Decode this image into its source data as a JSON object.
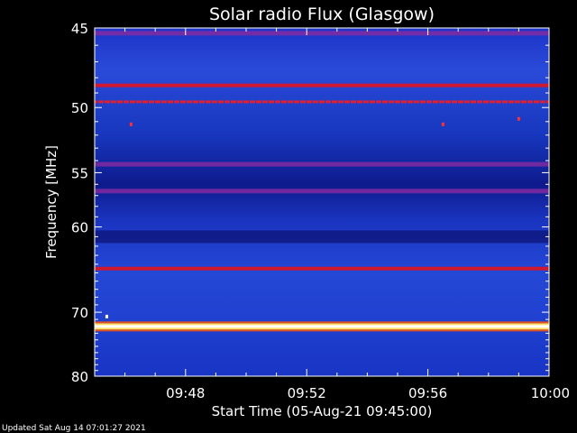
{
  "chart_data": {
    "type": "heatmap",
    "title": "Solar radio Flux (Glasgow)",
    "ylabel": "Frequency [MHz]",
    "xlabel": "Start Time (05-Aug-21 09:45:00)",
    "y_scale": "reciprocal",
    "ylim": [
      45,
      80
    ],
    "y_major_ticks": [
      45,
      50,
      55,
      60,
      70,
      80
    ],
    "y_tick_labels": [
      "45",
      "50",
      "55",
      "60",
      "70",
      "80"
    ],
    "xlim": [
      "09:45",
      "10:00"
    ],
    "x_tick_labels": [
      "09:48",
      "09:52",
      "09:56",
      "10:00"
    ],
    "x_ticks_minutes": [
      48,
      52,
      56,
      60
    ],
    "colormap": [
      "#0000a0",
      "#1e3cd2",
      "#7a1e9a",
      "#c81e3c",
      "#ffd040",
      "#ffffff"
    ],
    "bands": [
      {
        "freq_mhz": 45.3,
        "level": "medium"
      },
      {
        "freq_mhz": 48.5,
        "level": "high"
      },
      {
        "freq_mhz": 49.6,
        "level": "high-dashed"
      },
      {
        "freq_mhz": 54.3,
        "level": "medium"
      },
      {
        "freq_mhz": 56.6,
        "level": "medium"
      },
      {
        "freq_mhz": 61.0,
        "level": "low"
      },
      {
        "freq_mhz": 64.5,
        "level": "high"
      },
      {
        "freq_mhz": 72.0,
        "level": "saturated"
      }
    ]
  },
  "footer": {
    "updated": "Updated Sat Aug 14 07:01:27 2021"
  }
}
